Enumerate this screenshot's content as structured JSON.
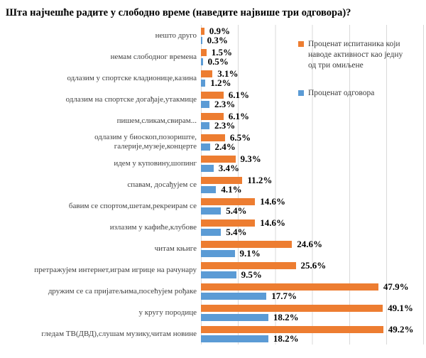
{
  "title": "Шта најчешће радите у слободно време (наведите највише три одговора)?",
  "legend": [
    {
      "label": "Проценат испитаника који наводе активност као једну од три омиљене",
      "color": "#ED7D31"
    },
    {
      "label": "Проценат одговора",
      "color": "#5B9BD5"
    }
  ],
  "chart_data": {
    "type": "bar",
    "orientation": "horizontal",
    "title": "Шта најчешће радите у слободно време (наведите највише три одговора)?",
    "xlabel": "",
    "ylabel": "",
    "xlim": [
      0,
      60
    ],
    "gridline_interval": 10,
    "grid": true,
    "legend_position": "top-right-inside",
    "value_suffix": "%",
    "categories": [
      "нешто друго",
      "немам слободног времена",
      "одлазим у спортске кладионице,казина",
      "одлазим на спортске догађаје,утакмице",
      "пишем,сликам,свирам...",
      "одлазим у биоскоп,позориште,\nгалерије,музеје,концерте",
      "идем у куповину,шопинг",
      "спавам, досађујем се",
      "бавим се спортом,шетам,рекреирам се",
      "излазим у кафиће,клубове",
      "читам књиге",
      "претражујем интернет,играм игрице на рачунару",
      "дружим се са пријатељима,посећујем рођаке",
      "у кругу породице",
      "гледам ТВ(ДВД),слушам музику,читам новине"
    ],
    "series": [
      {
        "name": "Проценат испитаника који наводе активност као једну од три омиљене",
        "color": "#ED7D31",
        "values": [
          0.9,
          1.5,
          3.1,
          6.1,
          6.1,
          6.5,
          9.3,
          11.2,
          14.6,
          14.6,
          24.6,
          25.6,
          47.9,
          49.1,
          49.2
        ]
      },
      {
        "name": "Проценат одговора",
        "color": "#5B9BD5",
        "values": [
          0.3,
          0.5,
          1.2,
          2.3,
          2.3,
          2.4,
          3.4,
          4.1,
          5.4,
          5.4,
          9.1,
          9.5,
          17.7,
          18.2,
          18.2
        ]
      }
    ]
  }
}
